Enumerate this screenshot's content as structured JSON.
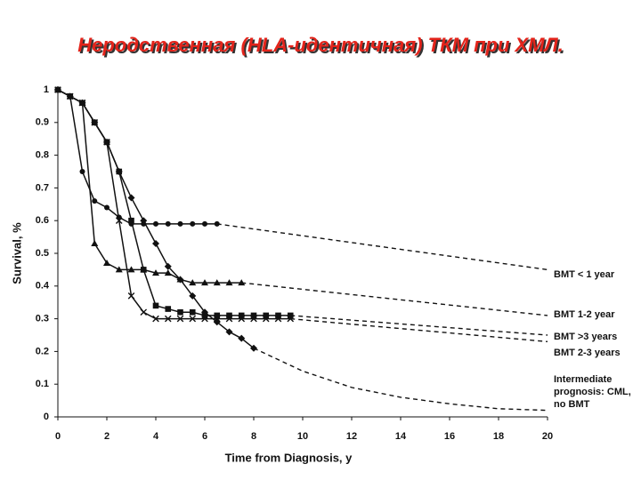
{
  "chart_data": {
    "type": "line",
    "title": "Неродственная (HLA-идентичная) ТКМ при ХМЛ.",
    "x_label": "Time from Diagnosis, y",
    "y_label": "Survival, %",
    "xlim": [
      0,
      20
    ],
    "xticks": [
      0,
      2,
      4,
      6,
      8,
      10,
      12,
      14,
      16,
      18,
      20
    ],
    "ylim": [
      0,
      1
    ],
    "yticks": [
      0,
      0.1,
      0.2,
      0.3,
      0.4,
      0.5,
      0.6,
      0.7,
      0.8,
      0.9,
      1
    ],
    "series": [
      {
        "name": "BMT < 1 year",
        "color": "#111111",
        "marker": "circle",
        "x": [
          0,
          0.5,
          1,
          1.5,
          2,
          2.5,
          3,
          3.5,
          4,
          4.5,
          5,
          5.5,
          6,
          6.5
        ],
        "values": [
          1,
          0.98,
          0.75,
          0.66,
          0.64,
          0.61,
          0.59,
          0.59,
          0.59,
          0.59,
          0.59,
          0.59,
          0.59,
          0.59
        ],
        "projection": {
          "x": [
            20
          ],
          "values": [
            0.45
          ]
        }
      },
      {
        "name": "BMT 1-2 year",
        "color": "#111111",
        "marker": "triangle",
        "x": [
          0,
          0.5,
          1,
          1.5,
          2,
          2.5,
          3,
          3.5,
          4,
          4.5,
          5,
          5.5,
          6,
          6.5,
          7,
          7.5
        ],
        "values": [
          1,
          0.98,
          0.96,
          0.53,
          0.47,
          0.45,
          0.45,
          0.45,
          0.44,
          0.44,
          0.42,
          0.41,
          0.41,
          0.41,
          0.41,
          0.41
        ],
        "projection": {
          "x": [
            20
          ],
          "values": [
            0.31
          ]
        }
      },
      {
        "name": "BMT >3 years",
        "color": "#111111",
        "marker": "square",
        "x": [
          0,
          0.5,
          1,
          1.5,
          2,
          2.5,
          3,
          3.5,
          4,
          4.5,
          5,
          5.5,
          6,
          6.5,
          7,
          7.5,
          8,
          8.5,
          9,
          9.5
        ],
        "values": [
          1,
          0.98,
          0.96,
          0.9,
          0.84,
          0.75,
          0.6,
          0.45,
          0.34,
          0.33,
          0.32,
          0.32,
          0.31,
          0.31,
          0.31,
          0.31,
          0.31,
          0.31,
          0.31,
          0.31
        ],
        "projection": {
          "x": [
            20
          ],
          "values": [
            0.25
          ]
        }
      },
      {
        "name": "BMT 2-3 years",
        "color": "#111111",
        "marker": "cross",
        "x": [
          0,
          0.5,
          1,
          1.5,
          2,
          2.5,
          3,
          3.5,
          4,
          4.5,
          5,
          5.5,
          6,
          6.5,
          7,
          7.5,
          8,
          8.5,
          9,
          9.5
        ],
        "values": [
          1,
          0.98,
          0.96,
          0.9,
          0.84,
          0.6,
          0.37,
          0.32,
          0.3,
          0.3,
          0.3,
          0.3,
          0.3,
          0.3,
          0.3,
          0.3,
          0.3,
          0.3,
          0.3,
          0.3
        ],
        "projection": {
          "x": [
            20
          ],
          "values": [
            0.23
          ]
        }
      },
      {
        "name": "Intermediate prognosis: CML, no BMT",
        "color": "#111111",
        "marker": "diamond",
        "x": [
          0,
          0.5,
          1,
          1.5,
          2,
          2.5,
          3,
          3.5,
          4,
          4.5,
          5,
          5.5,
          6,
          6.5,
          7,
          7.5,
          8
        ],
        "values": [
          1,
          0.98,
          0.96,
          0.9,
          0.84,
          0.75,
          0.67,
          0.6,
          0.53,
          0.46,
          0.42,
          0.37,
          0.32,
          0.29,
          0.26,
          0.24,
          0.21
        ],
        "projection": {
          "x": [
            10,
            12,
            14,
            16,
            18,
            20
          ],
          "values": [
            0.14,
            0.09,
            0.06,
            0.04,
            0.025,
            0.02
          ]
        }
      }
    ]
  }
}
